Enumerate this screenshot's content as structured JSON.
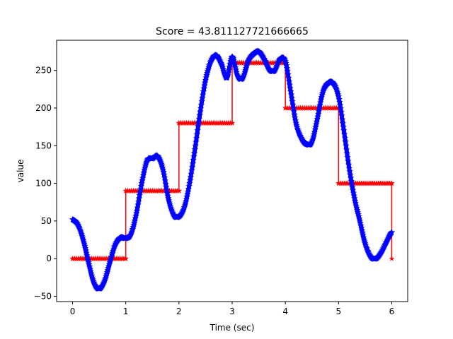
{
  "chart_data": {
    "type": "line",
    "title": "Score = 43.811127721666665",
    "xlabel": "Time (sec)",
    "ylabel": "value",
    "xlim": [
      -0.3,
      6.3
    ],
    "ylim": [
      -57,
      290
    ],
    "xticks": [
      0,
      1,
      2,
      3,
      4,
      5,
      6
    ],
    "yticks": [
      -50,
      0,
      50,
      100,
      150,
      200,
      250
    ],
    "grid": false,
    "legend": "none",
    "series": [
      {
        "color": "#ff0000",
        "marker": "star",
        "style": "step",
        "steps": [
          {
            "x_start": 0,
            "x_end": 1,
            "value": 0
          },
          {
            "x_start": 1,
            "x_end": 2,
            "value": 90
          },
          {
            "x_start": 2,
            "x_end": 3,
            "value": 180
          },
          {
            "x_start": 3,
            "x_end": 4,
            "value": 260
          },
          {
            "x_start": 4,
            "x_end": 5,
            "value": 200
          },
          {
            "x_start": 5,
            "x_end": 6,
            "value": 100
          },
          {
            "x_start": 6,
            "x_end": 6,
            "value": 0
          }
        ]
      },
      {
        "color": "#0000ff",
        "marker": "star",
        "style": "dense-markers",
        "x": [
          0,
          0.1,
          0.2,
          0.3,
          0.4,
          0.5,
          0.6,
          0.7,
          0.8,
          0.9,
          1.0,
          1.1,
          1.2,
          1.3,
          1.4,
          1.5,
          1.6,
          1.7,
          1.8,
          1.9,
          2.0,
          2.1,
          2.2,
          2.3,
          2.4,
          2.5,
          2.6,
          2.7,
          2.8,
          2.9,
          3.0,
          3.1,
          3.2,
          3.3,
          3.4,
          3.5,
          3.6,
          3.7,
          3.8,
          3.9,
          4.0,
          4.1,
          4.2,
          4.3,
          4.4,
          4.5,
          4.6,
          4.7,
          4.8,
          4.9,
          5.0,
          5.1,
          5.2,
          5.3,
          5.4,
          5.5,
          5.6,
          5.7,
          5.8,
          5.9,
          6.0
        ],
        "y": [
          52,
          45,
          25,
          -5,
          -32,
          -40,
          -30,
          -5,
          18,
          28,
          27,
          33,
          60,
          100,
          130,
          133,
          136,
          118,
          80,
          58,
          56,
          68,
          100,
          145,
          195,
          237,
          262,
          270,
          258,
          240,
          268,
          243,
          240,
          262,
          272,
          275,
          265,
          251,
          250,
          265,
          262,
          222,
          180,
          160,
          152,
          155,
          185,
          220,
          233,
          233,
          215,
          170,
          120,
          80,
          50,
          20,
          3,
          0,
          8,
          22,
          35
        ]
      }
    ]
  }
}
